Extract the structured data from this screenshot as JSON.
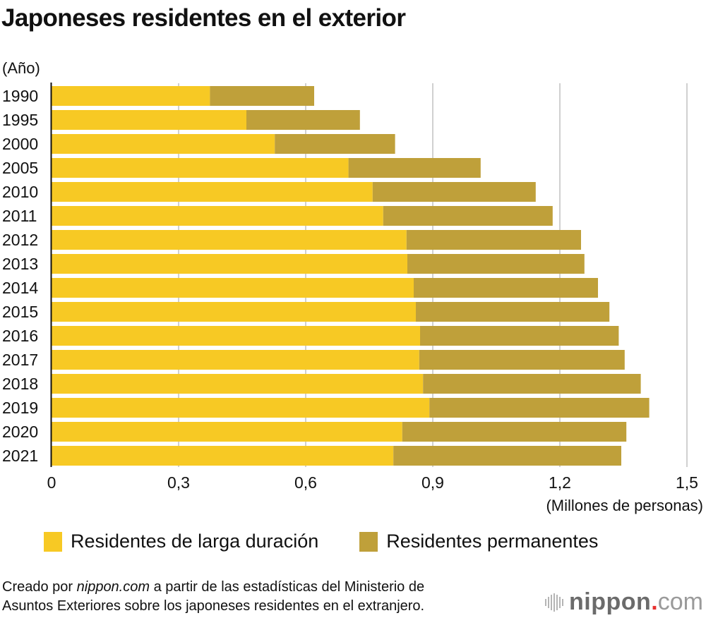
{
  "header": {
    "title": "Japoneses residentes en el exterior",
    "y_axis_unit": "(Año)"
  },
  "colors": {
    "long_term": "#F7C924",
    "permanent": "#BFA03A",
    "grid": "#d0d0d0",
    "axis": "#111111"
  },
  "chart_data": {
    "type": "bar",
    "orientation": "horizontal",
    "stacked": true,
    "title": "Japoneses residentes en el exterior",
    "xlabel": "(Millones de personas)",
    "ylabel": "(Año)",
    "xlim": [
      0,
      1.5
    ],
    "xticks": [
      0,
      0.3,
      0.6,
      0.9,
      1.2,
      1.5
    ],
    "xtick_labels": [
      "0",
      "0,3",
      "0,6",
      "0,9",
      "1,2",
      "1,5"
    ],
    "grid": true,
    "legend_position": "bottom",
    "categories": [
      "1990",
      "1995",
      "2000",
      "2005",
      "2010",
      "2011",
      "2012",
      "2013",
      "2014",
      "2015",
      "2016",
      "2017",
      "2018",
      "2019",
      "2020",
      "2021"
    ],
    "series": [
      {
        "name": "Residentes de larga duración",
        "values": [
          0.374,
          0.46,
          0.527,
          0.701,
          0.758,
          0.783,
          0.838,
          0.84,
          0.855,
          0.86,
          0.87,
          0.868,
          0.877,
          0.892,
          0.828,
          0.807
        ]
      },
      {
        "name": "Residentes permanentes",
        "values": [
          0.246,
          0.268,
          0.284,
          0.312,
          0.385,
          0.4,
          0.412,
          0.418,
          0.435,
          0.457,
          0.469,
          0.485,
          0.514,
          0.519,
          0.529,
          0.538
        ]
      }
    ]
  },
  "legend": {
    "items": [
      {
        "label": "Residentes de larga duración"
      },
      {
        "label": "Residentes permanentes"
      }
    ]
  },
  "footer": {
    "source_prefix": "Creado por ",
    "source_brand": "nippon.com",
    "source_line1_rest": " a partir de las estadísticas del Ministerio de",
    "source_line2": "Asuntos Exteriores sobre los japoneses residentes en el extranjero.",
    "logo_name": "nippon",
    "logo_dot": ".",
    "logo_tld": "com"
  }
}
